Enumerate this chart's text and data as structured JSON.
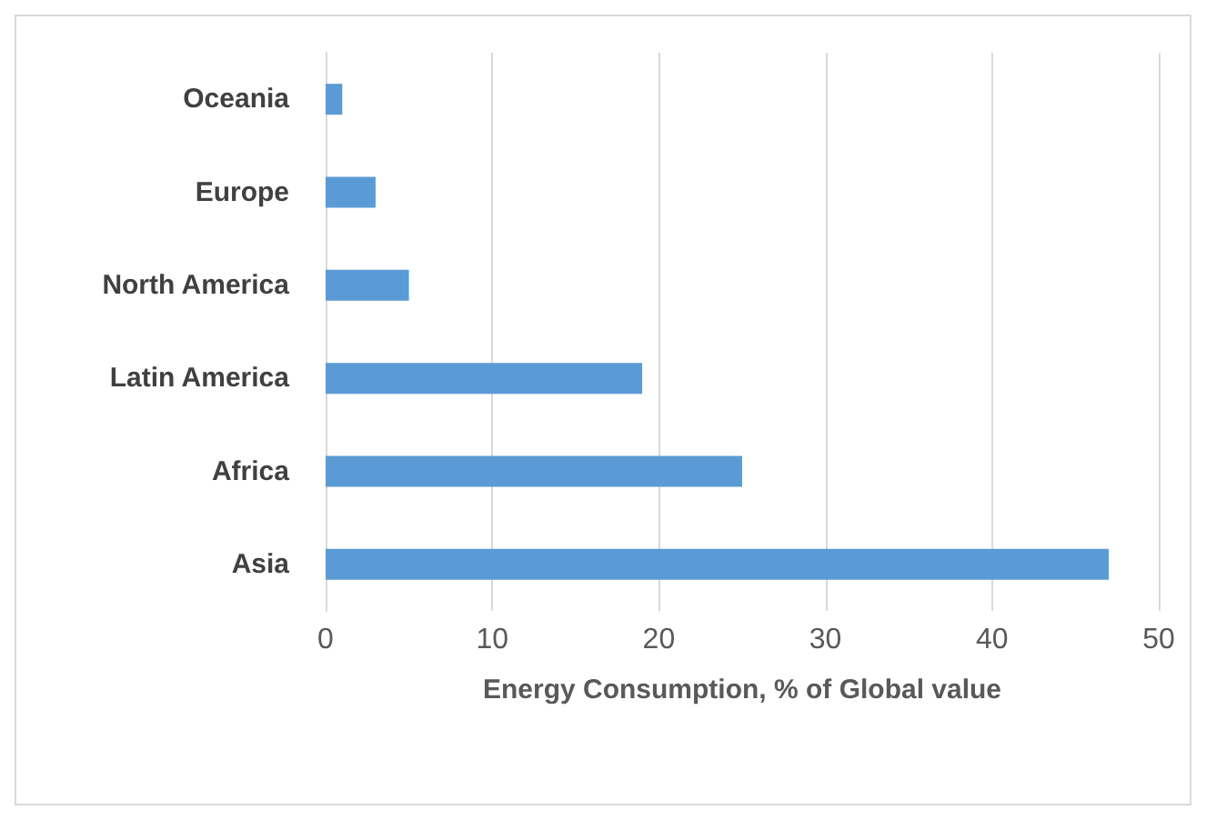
{
  "chart_data": {
    "type": "bar",
    "orientation": "horizontal",
    "categories": [
      "Oceania",
      "Europe",
      "North America",
      "Latin America",
      "Africa",
      "Asia"
    ],
    "values": [
      1,
      3,
      5,
      19,
      25,
      47
    ],
    "color": "#5b9bd5",
    "xlabel": "Energy Consumption, % of Global value",
    "xlim": [
      0,
      50
    ],
    "xticks": [
      0,
      10,
      20,
      30,
      40,
      50
    ],
    "grid": "x"
  }
}
